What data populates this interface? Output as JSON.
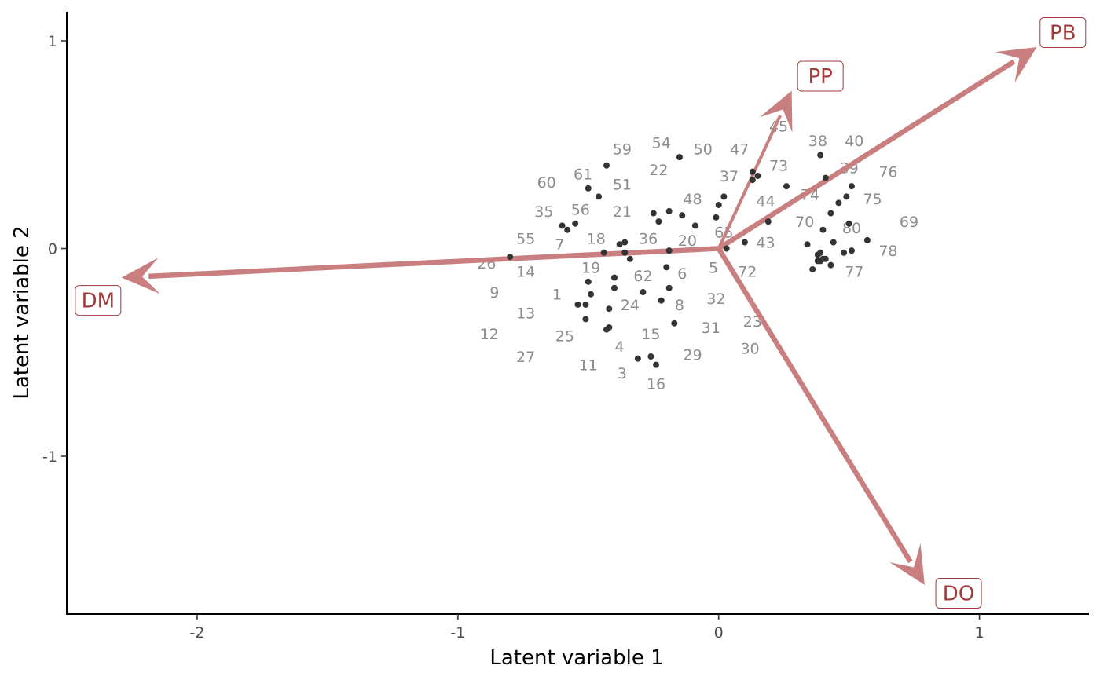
{
  "chart_data": {
    "type": "scatter",
    "xlabel": "Latent variable 1",
    "ylabel": "Latent variable 2",
    "xlim": [
      -2.5,
      1.42
    ],
    "ylim": [
      -1.76,
      1.14
    ],
    "xticks": [
      -2,
      -1,
      0,
      1
    ],
    "yticks": [
      -1,
      0,
      1
    ],
    "x_tick_labels": [
      "-2",
      "-1",
      "0",
      "1"
    ],
    "y_tick_labels": [
      "-1",
      "0",
      "1"
    ],
    "grid": false,
    "legend": "none",
    "point_color": "#333333",
    "site_label_color": "#8c8c8c",
    "arrow_color": "#c97f7f",
    "vector_label_color": "#a33a3a",
    "points": [
      [
        -0.43,
        0.4
      ],
      [
        -0.15,
        0.44
      ],
      [
        -0.5,
        0.29
      ],
      [
        -0.46,
        0.25
      ],
      [
        -0.6,
        0.11
      ],
      [
        -0.58,
        0.09
      ],
      [
        -0.55,
        0.12
      ],
      [
        -0.8,
        -0.04
      ],
      [
        -0.44,
        -0.02
      ],
      [
        -0.38,
        0.02
      ],
      [
        -0.36,
        0.03
      ],
      [
        -0.36,
        -0.02
      ],
      [
        -0.34,
        -0.05
      ],
      [
        -0.25,
        0.17
      ],
      [
        -0.23,
        0.13
      ],
      [
        -0.19,
        0.18
      ],
      [
        -0.14,
        0.16
      ],
      [
        -0.09,
        0.11
      ],
      [
        -0.19,
        -0.01
      ],
      [
        -0.2,
        -0.09
      ],
      [
        -0.4,
        -0.14
      ],
      [
        -0.5,
        -0.16
      ],
      [
        -0.4,
        -0.19
      ],
      [
        -0.54,
        -0.27
      ],
      [
        -0.51,
        -0.27
      ],
      [
        -0.49,
        -0.22
      ],
      [
        -0.42,
        -0.29
      ],
      [
        -0.29,
        -0.21
      ],
      [
        -0.19,
        -0.19
      ],
      [
        -0.22,
        -0.25
      ],
      [
        -0.51,
        -0.34
      ],
      [
        -0.42,
        -0.38
      ],
      [
        -0.43,
        -0.39
      ],
      [
        -0.17,
        -0.36
      ],
      [
        -0.31,
        -0.53
      ],
      [
        -0.26,
        -0.52
      ],
      [
        -0.24,
        -0.56
      ],
      [
        0.0,
        0.21
      ],
      [
        0.02,
        0.25
      ],
      [
        -0.01,
        0.15
      ],
      [
        0.13,
        0.37
      ],
      [
        0.13,
        0.33
      ],
      [
        0.15,
        0.35
      ],
      [
        0.26,
        0.3
      ],
      [
        0.19,
        0.13
      ],
      [
        0.1,
        0.03
      ],
      [
        0.03,
        0.0
      ],
      [
        0.39,
        0.45
      ],
      [
        0.41,
        0.34
      ],
      [
        0.51,
        0.3
      ],
      [
        0.49,
        0.25
      ],
      [
        0.46,
        0.22
      ],
      [
        0.43,
        0.17
      ],
      [
        0.5,
        0.12
      ],
      [
        0.4,
        0.09
      ],
      [
        0.44,
        0.03
      ],
      [
        0.57,
        0.04
      ],
      [
        0.34,
        0.02
      ],
      [
        0.38,
        -0.03
      ],
      [
        0.39,
        -0.02
      ],
      [
        0.39,
        -0.06
      ],
      [
        0.41,
        -0.05
      ],
      [
        0.43,
        -0.08
      ],
      [
        0.48,
        -0.02
      ],
      [
        0.51,
        -0.01
      ],
      [
        0.36,
        -0.1
      ],
      [
        0.4,
        -0.05
      ],
      [
        0.38,
        -0.06
      ]
    ],
    "site_labels": [
      {
        "text": "59",
        "x": -0.37,
        "y": 0.48
      },
      {
        "text": "54",
        "x": -0.22,
        "y": 0.51
      },
      {
        "text": "50",
        "x": -0.06,
        "y": 0.48
      },
      {
        "text": "47",
        "x": 0.08,
        "y": 0.48
      },
      {
        "text": "45",
        "x": 0.23,
        "y": 0.59
      },
      {
        "text": "38",
        "x": 0.38,
        "y": 0.52
      },
      {
        "text": "40",
        "x": 0.52,
        "y": 0.52
      },
      {
        "text": "61",
        "x": -0.52,
        "y": 0.36
      },
      {
        "text": "22",
        "x": -0.23,
        "y": 0.38
      },
      {
        "text": "37",
        "x": 0.04,
        "y": 0.35
      },
      {
        "text": "73",
        "x": 0.23,
        "y": 0.4
      },
      {
        "text": "39",
        "x": 0.5,
        "y": 0.39
      },
      {
        "text": "76",
        "x": 0.65,
        "y": 0.37
      },
      {
        "text": "60",
        "x": -0.66,
        "y": 0.32
      },
      {
        "text": "51",
        "x": -0.37,
        "y": 0.31
      },
      {
        "text": "48",
        "x": -0.1,
        "y": 0.24
      },
      {
        "text": "74",
        "x": 0.35,
        "y": 0.26
      },
      {
        "text": "44",
        "x": 0.18,
        "y": 0.23
      },
      {
        "text": "75",
        "x": 0.59,
        "y": 0.24
      },
      {
        "text": "35",
        "x": -0.67,
        "y": 0.18
      },
      {
        "text": "56",
        "x": -0.53,
        "y": 0.19
      },
      {
        "text": "21",
        "x": -0.37,
        "y": 0.18
      },
      {
        "text": "70",
        "x": 0.33,
        "y": 0.13
      },
      {
        "text": "80",
        "x": 0.51,
        "y": 0.1
      },
      {
        "text": "69",
        "x": 0.73,
        "y": 0.13
      },
      {
        "text": "55",
        "x": -0.74,
        "y": 0.05
      },
      {
        "text": "18",
        "x": -0.47,
        "y": 0.05
      },
      {
        "text": "36",
        "x": -0.27,
        "y": 0.05
      },
      {
        "text": "20",
        "x": -0.12,
        "y": 0.04
      },
      {
        "text": "65",
        "x": 0.02,
        "y": 0.08
      },
      {
        "text": "43",
        "x": 0.18,
        "y": 0.03
      },
      {
        "text": "78",
        "x": 0.65,
        "y": -0.01
      },
      {
        "text": "7",
        "x": -0.61,
        "y": 0.02
      },
      {
        "text": "26",
        "x": -0.89,
        "y": -0.07
      },
      {
        "text": "14",
        "x": -0.74,
        "y": -0.11
      },
      {
        "text": "19",
        "x": -0.49,
        "y": -0.09
      },
      {
        "text": "62",
        "x": -0.29,
        "y": -0.13
      },
      {
        "text": "6",
        "x": -0.14,
        "y": -0.12
      },
      {
        "text": "5",
        "x": -0.02,
        "y": -0.09
      },
      {
        "text": "72",
        "x": 0.11,
        "y": -0.11
      },
      {
        "text": "77",
        "x": 0.52,
        "y": -0.11
      },
      {
        "text": "9",
        "x": -0.86,
        "y": -0.21
      },
      {
        "text": "1",
        "x": -0.62,
        "y": -0.22
      },
      {
        "text": "24",
        "x": -0.34,
        "y": -0.27
      },
      {
        "text": "8",
        "x": -0.15,
        "y": -0.27
      },
      {
        "text": "32",
        "x": -0.01,
        "y": -0.24
      },
      {
        "text": "13",
        "x": -0.74,
        "y": -0.31
      },
      {
        "text": "23",
        "x": 0.13,
        "y": -0.35
      },
      {
        "text": "31",
        "x": -0.03,
        "y": -0.38
      },
      {
        "text": "15",
        "x": -0.26,
        "y": -0.41
      },
      {
        "text": "12",
        "x": -0.88,
        "y": -0.41
      },
      {
        "text": "25",
        "x": -0.59,
        "y": -0.42
      },
      {
        "text": "4",
        "x": -0.38,
        "y": -0.47
      },
      {
        "text": "30",
        "x": 0.12,
        "y": -0.48
      },
      {
        "text": "29",
        "x": -0.1,
        "y": -0.51
      },
      {
        "text": "27",
        "x": -0.74,
        "y": -0.52
      },
      {
        "text": "11",
        "x": -0.5,
        "y": -0.56
      },
      {
        "text": "3",
        "x": -0.37,
        "y": -0.6
      },
      {
        "text": "16",
        "x": -0.24,
        "y": -0.65
      }
    ],
    "vectors": [
      {
        "label": "DM",
        "x": -2.29,
        "y": -0.14,
        "lx": -2.38,
        "ly": -0.25
      },
      {
        "label": "PP",
        "x": 0.28,
        "y": 0.76,
        "lx": 0.39,
        "ly": 0.83
      },
      {
        "label": "PB",
        "x": 1.22,
        "y": 0.97,
        "lx": 1.32,
        "ly": 1.04
      },
      {
        "label": "DO",
        "x": 0.79,
        "y": -1.62,
        "lx": 0.92,
        "ly": -1.66
      }
    ]
  }
}
